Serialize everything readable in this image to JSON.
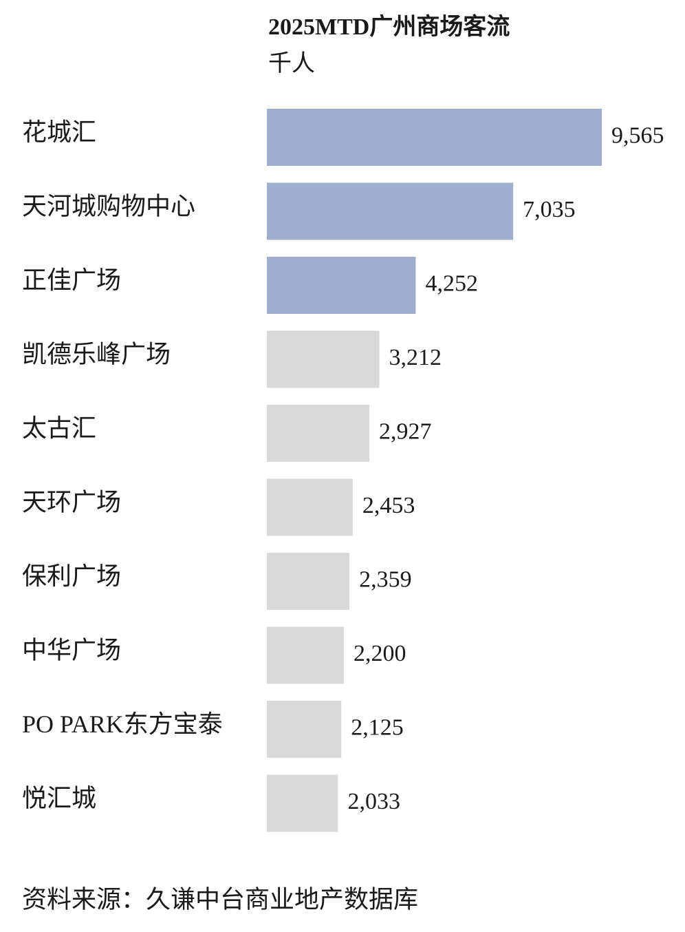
{
  "chart_data": {
    "type": "bar",
    "orientation": "horizontal",
    "title": "2025MTD广州商场客流",
    "subtitle": "千人",
    "categories": [
      "花城汇",
      "天河城购物中心",
      "正佳广场",
      "凯德乐峰广场",
      "太古汇",
      "天环广场",
      "保利广场",
      "中华广场",
      "PO PARK东方宝泰",
      "悦汇城"
    ],
    "values": [
      9565,
      7035,
      4252,
      3212,
      2927,
      2453,
      2359,
      2200,
      2125,
      2033
    ],
    "value_labels": [
      "9,565",
      "7,035",
      "4,252",
      "3,212",
      "2,927",
      "2,453",
      "2,359",
      "2,200",
      "2,125",
      "2,033"
    ],
    "colors": [
      "#9dafcd",
      "#9dafcd",
      "#9dafcd",
      "#d9d9d9",
      "#d9d9d9",
      "#d9d9d9",
      "#d9d9d9",
      "#d9d9d9",
      "#d9d9d9",
      "#d9d9d9"
    ],
    "source": "资料来源：久谦中台商业地产数据库"
  }
}
